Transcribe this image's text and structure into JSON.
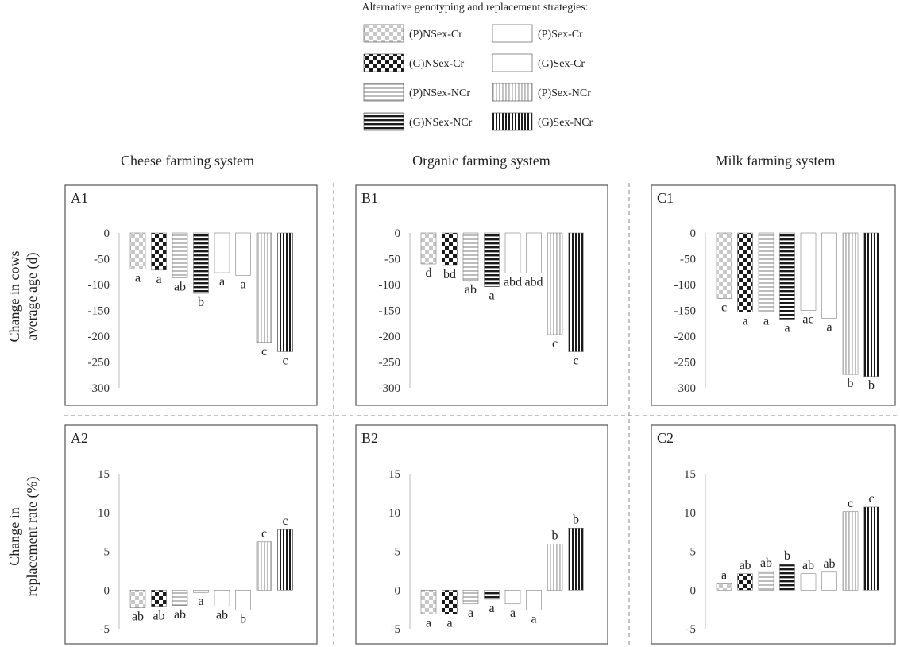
{
  "legend": {
    "title": "Alternative genotyping and replacement strategies:",
    "entries": [
      {
        "label": "(P)NSex-Cr",
        "pattern": "check-light"
      },
      {
        "label": "(P)Sex-Cr",
        "pattern": "solid-grey"
      },
      {
        "label": "(G)NSex-Cr",
        "pattern": "check-dark"
      },
      {
        "label": "(G)Sex-Cr",
        "pattern": "solid-black"
      },
      {
        "label": "(P)NSex-NCr",
        "pattern": "hstripe-light"
      },
      {
        "label": "(P)Sex-NCr",
        "pattern": "vstripe-light"
      },
      {
        "label": "(G)NSex-NCr",
        "pattern": "hstripe-dark"
      },
      {
        "label": "(G)Sex-NCr",
        "pattern": "vstripe-dark"
      }
    ]
  },
  "columns": [
    {
      "title": "Cheese farming system"
    },
    {
      "title": "Organic farming system"
    },
    {
      "title": "Milk farming system"
    }
  ],
  "rows": [
    {
      "title_line1": "Change in cows",
      "title_line2": "average age (d)"
    },
    {
      "title_line1": "Change in",
      "title_line2": "replacement rate (%)"
    }
  ],
  "bar_order": [
    "(P)NSex-Cr",
    "(G)NSex-Cr",
    "(P)NSex-NCr",
    "(G)NSex-NCr",
    "(P)Sex-Cr",
    "(G)Sex-Cr",
    "(P)Sex-NCr",
    "(G)Sex-NCr"
  ],
  "bar_patterns": [
    "check-light",
    "check-dark",
    "hstripe-light",
    "hstripe-dark",
    "solid-grey",
    "solid-black",
    "vstripe-light",
    "vstripe-dark"
  ],
  "chart_data": [
    {
      "type": "bar",
      "panel": "A1",
      "categories": [
        "(P)NSex-Cr",
        "(G)NSex-Cr",
        "(P)NSex-NCr",
        "(G)NSex-NCr",
        "(P)Sex-Cr",
        "(G)Sex-Cr",
        "(P)Sex-NCr",
        "(G)Sex-NCr"
      ],
      "values": [
        -70,
        -72,
        -87,
        -117,
        -77,
        -82,
        -212,
        -230
      ],
      "letters": [
        "a",
        "a",
        "ab",
        "b",
        "a",
        "a",
        "c",
        "c"
      ],
      "ylim": [
        -300,
        0
      ],
      "yticks": [
        0,
        -50,
        -100,
        -150,
        -200,
        -250,
        -300
      ],
      "title": "",
      "xlabel": "",
      "ylabel": "Change in cows average age (d)"
    },
    {
      "type": "bar",
      "panel": "B1",
      "categories": [
        "(P)NSex-Cr",
        "(G)NSex-Cr",
        "(P)NSex-NCr",
        "(G)NSex-NCr",
        "(P)Sex-Cr",
        "(G)Sex-Cr",
        "(P)Sex-NCr",
        "(G)Sex-NCr"
      ],
      "values": [
        -60,
        -63,
        -92,
        -104,
        -78,
        -78,
        -197,
        -230
      ],
      "letters": [
        "d",
        "bd",
        "ab",
        "a",
        "abd",
        "abd",
        "c",
        "c"
      ],
      "ylim": [
        -300,
        0
      ],
      "yticks": [
        0,
        -50,
        -100,
        -150,
        -200,
        -250,
        -300
      ],
      "title": "",
      "xlabel": "",
      "ylabel": "Change in cows average age (d)"
    },
    {
      "type": "bar",
      "panel": "C1",
      "categories": [
        "(P)NSex-Cr",
        "(G)NSex-Cr",
        "(P)NSex-NCr",
        "(G)NSex-NCr",
        "(P)Sex-Cr",
        "(G)Sex-Cr",
        "(P)Sex-NCr",
        "(G)Sex-NCr"
      ],
      "values": [
        -127,
        -153,
        -153,
        -167,
        -150,
        -165,
        -274,
        -278
      ],
      "letters": [
        "c",
        "a",
        "a",
        "a",
        "ac",
        "a",
        "b",
        "b"
      ],
      "ylim": [
        -300,
        0
      ],
      "yticks": [
        0,
        -50,
        -100,
        -150,
        -200,
        -250,
        -300
      ],
      "title": "",
      "xlabel": "",
      "ylabel": "Change in cows average age (d)"
    },
    {
      "type": "bar",
      "panel": "A2",
      "categories": [
        "(P)NSex-Cr",
        "(G)NSex-Cr",
        "(P)NSex-NCr",
        "(G)NSex-NCr",
        "(P)Sex-Cr",
        "(G)Sex-Cr",
        "(P)Sex-NCr",
        "(G)Sex-NCr"
      ],
      "values": [
        -2.3,
        -2.2,
        -2.0,
        -0.3,
        -2.1,
        -2.6,
        6.2,
        7.8
      ],
      "letters": [
        "ab",
        "ab",
        "ab",
        "a",
        "ab",
        "b",
        "c",
        "c"
      ],
      "ylim": [
        -5,
        15
      ],
      "yticks": [
        15,
        10,
        5,
        0,
        -5
      ],
      "title": "",
      "xlabel": "",
      "ylabel": "Change in replacement rate (%)"
    },
    {
      "type": "bar",
      "panel": "B2",
      "categories": [
        "(P)NSex-Cr",
        "(G)NSex-Cr",
        "(P)NSex-NCr",
        "(G)NSex-NCr",
        "(P)Sex-Cr",
        "(G)Sex-Cr",
        "(P)Sex-NCr",
        "(G)Sex-NCr"
      ],
      "values": [
        -3.1,
        -3.1,
        -1.8,
        -1.2,
        -1.8,
        -2.6,
        5.9,
        8.0
      ],
      "letters": [
        "a",
        "a",
        "a",
        "a",
        "a",
        "a",
        "b",
        "b"
      ],
      "ylim": [
        -5,
        15
      ],
      "yticks": [
        15,
        10,
        5,
        0,
        -5
      ],
      "title": "",
      "xlabel": "",
      "ylabel": "Change in replacement rate (%)"
    },
    {
      "type": "bar",
      "panel": "C2",
      "categories": [
        "(P)NSex-Cr",
        "(G)NSex-Cr",
        "(P)NSex-NCr",
        "(G)NSex-NCr",
        "(P)Sex-Cr",
        "(G)Sex-Cr",
        "(P)Sex-NCr",
        "(G)Sex-NCr"
      ],
      "values": [
        0.8,
        2.1,
        2.4,
        3.3,
        2.1,
        2.3,
        10.1,
        10.7
      ],
      "letters": [
        "a",
        "ab",
        "ab",
        "b",
        "ab",
        "ab",
        "c",
        "c"
      ],
      "ylim": [
        -5,
        15
      ],
      "yticks": [
        15,
        10,
        5,
        0,
        -5
      ],
      "title": "",
      "xlabel": "",
      "ylabel": "Change in replacement rate (%)"
    }
  ]
}
